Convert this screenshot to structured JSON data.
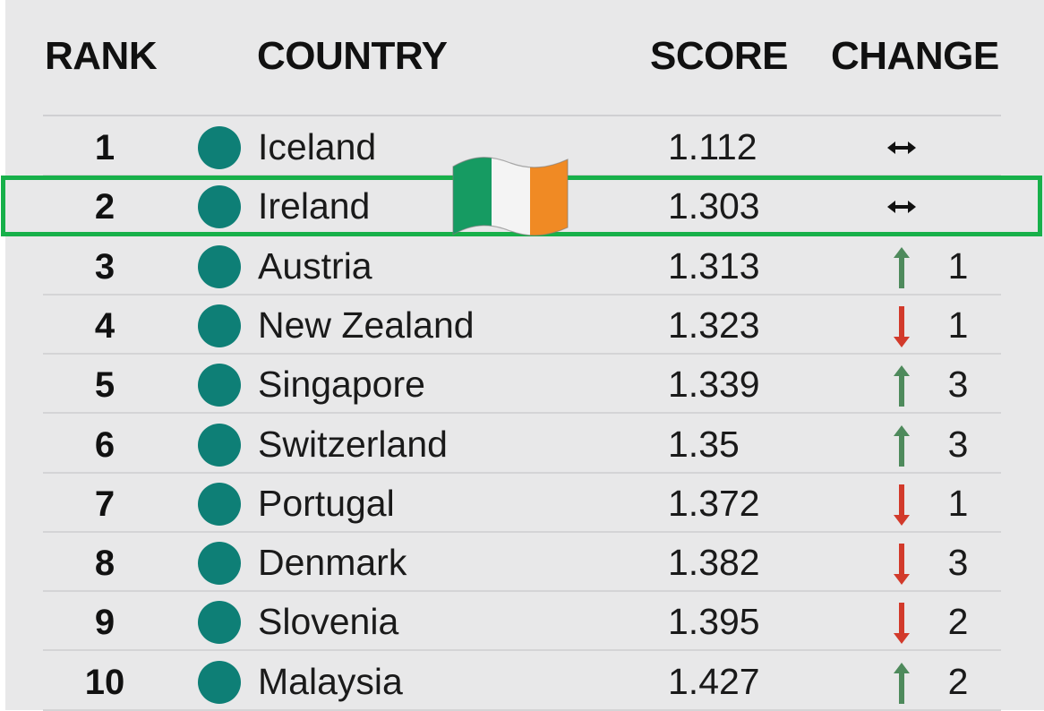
{
  "headers": {
    "rank": "RANK",
    "country": "COUNTRY",
    "score": "SCORE",
    "change": "CHANGE"
  },
  "colors": {
    "dot": "#0e7f76",
    "up": "#4e8a5c",
    "down": "#d23a2b",
    "highlight": "#17b04a",
    "background": "#e8e8e9"
  },
  "highlighted_country": "Ireland",
  "flag_icon": "ireland-flag-icon",
  "rows": [
    {
      "rank": "1",
      "country": "Iceland",
      "score": "1.112",
      "direction": "same",
      "change": ""
    },
    {
      "rank": "2",
      "country": "Ireland",
      "score": "1.303",
      "direction": "same",
      "change": ""
    },
    {
      "rank": "3",
      "country": "Austria",
      "score": "1.313",
      "direction": "up",
      "change": "1"
    },
    {
      "rank": "4",
      "country": "New Zealand",
      "score": "1.323",
      "direction": "down",
      "change": "1"
    },
    {
      "rank": "5",
      "country": "Singapore",
      "score": "1.339",
      "direction": "up",
      "change": "3"
    },
    {
      "rank": "6",
      "country": "Switzerland",
      "score": "1.35",
      "direction": "up",
      "change": "3"
    },
    {
      "rank": "7",
      "country": "Portugal",
      "score": "1.372",
      "direction": "down",
      "change": "1"
    },
    {
      "rank": "8",
      "country": "Denmark",
      "score": "1.382",
      "direction": "down",
      "change": "3"
    },
    {
      "rank": "9",
      "country": "Slovenia",
      "score": "1.395",
      "direction": "down",
      "change": "2"
    },
    {
      "rank": "10",
      "country": "Malaysia",
      "score": "1.427",
      "direction": "up",
      "change": "2"
    }
  ]
}
